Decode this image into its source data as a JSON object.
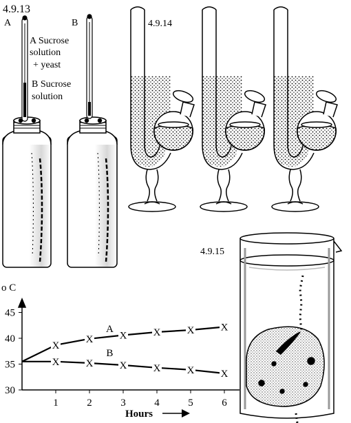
{
  "fig1": {
    "number": "4.9.13",
    "flask_a": "A",
    "flask_b": "B",
    "legend_a_1": "A Sucrose",
    "legend_a_2": "solution",
    "legend_a_3": "+ yeast",
    "legend_b_1": "B Sucrose",
    "legend_b_2": "solution"
  },
  "fig2": {
    "number": "4.9.14"
  },
  "fig3": {
    "number": "4.9.15"
  },
  "chart_data": {
    "type": "line",
    "ylabel": "o C",
    "xlabel": "Hours",
    "x_ticks": [
      "1",
      "2",
      "3",
      "4",
      "5",
      "6"
    ],
    "y_ticks": [
      "30",
      "35",
      "40",
      "45"
    ],
    "xlim": [
      0,
      6
    ],
    "ylim": [
      30,
      47
    ],
    "marker": "X",
    "series": [
      {
        "name": "A",
        "x": [
          1,
          2,
          3,
          4,
          5,
          6
        ],
        "y": [
          38.7,
          39.9,
          40.6,
          41.2,
          41.6,
          42.2
        ]
      },
      {
        "name": "B",
        "x": [
          1,
          2,
          3,
          4,
          5,
          6
        ],
        "y": [
          35.5,
          35.2,
          34.8,
          34.3,
          33.9,
          33.2
        ]
      }
    ],
    "start": {
      "x": 0,
      "y": 35.5
    }
  }
}
